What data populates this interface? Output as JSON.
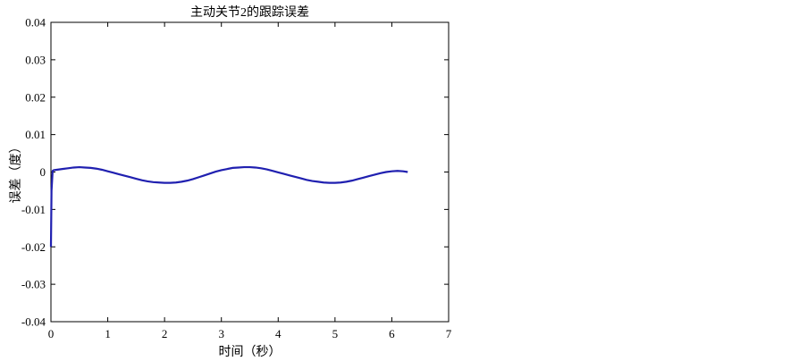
{
  "chart_data": {
    "type": "line",
    "title": "主动关节2的跟踪误差",
    "xlabel": "时间（秒）",
    "ylabel": "误差（度）",
    "xlim": [
      0,
      7
    ],
    "ylim": [
      -0.04,
      0.04
    ],
    "xticks": [
      0,
      1,
      2,
      3,
      4,
      5,
      6,
      7
    ],
    "yticks": [
      -0.04,
      -0.03,
      -0.02,
      -0.01,
      0,
      0.01,
      0.02,
      0.03,
      0.04
    ],
    "xtick_labels": [
      "0",
      "1",
      "2",
      "3",
      "4",
      "5",
      "6",
      "7"
    ],
    "ytick_labels": [
      "-0.04",
      "-0.03",
      "-0.02",
      "-0.01",
      "0",
      "0.01",
      "0.02",
      "0.03",
      "0.04"
    ],
    "grid": false,
    "line_color": "#2020b0",
    "series": [
      {
        "x": [
          0,
          0.01,
          0.03,
          0.05,
          0.1,
          0.2,
          0.3,
          0.4,
          0.5,
          0.6,
          0.7,
          0.8,
          0.9,
          1.0,
          1.1,
          1.2,
          1.3,
          1.4,
          1.5,
          1.6,
          1.7,
          1.8,
          1.9,
          2.0,
          2.1,
          2.2,
          2.3,
          2.4,
          2.5,
          2.6,
          2.7,
          2.8,
          2.9,
          3.0,
          3.1,
          3.2,
          3.3,
          3.4,
          3.5,
          3.6,
          3.7,
          3.8,
          3.9,
          4.0,
          4.1,
          4.2,
          4.3,
          4.4,
          4.5,
          4.6,
          4.7,
          4.8,
          4.9,
          5.0,
          5.1,
          5.2,
          5.3,
          5.4,
          5.5,
          5.6,
          5.7,
          5.8,
          5.9,
          6.0,
          6.1,
          6.2,
          6.28
        ],
        "y": [
          -0.02,
          -0.005,
          0.0003,
          0.0005,
          0.0006,
          0.0008,
          0.001,
          0.0012,
          0.0013,
          0.0012,
          0.0011,
          0.0009,
          0.0006,
          0.0002,
          -0.0002,
          -0.0006,
          -0.001,
          -0.0014,
          -0.0018,
          -0.0022,
          -0.0025,
          -0.0027,
          -0.0028,
          -0.0029,
          -0.0029,
          -0.0028,
          -0.0026,
          -0.0023,
          -0.0019,
          -0.0014,
          -0.0009,
          -0.0004,
          0.0001,
          0.0005,
          0.0008,
          0.0011,
          0.0012,
          0.0013,
          0.0013,
          0.0012,
          0.001,
          0.0007,
          0.0003,
          -0.0001,
          -0.0005,
          -0.0009,
          -0.0013,
          -0.0017,
          -0.0021,
          -0.0024,
          -0.0026,
          -0.0028,
          -0.0029,
          -0.0029,
          -0.0028,
          -0.0026,
          -0.0023,
          -0.0019,
          -0.0015,
          -0.0011,
          -0.0007,
          -0.0003,
          0.0,
          0.0002,
          0.0003,
          0.0002,
          0.0
        ]
      }
    ]
  }
}
